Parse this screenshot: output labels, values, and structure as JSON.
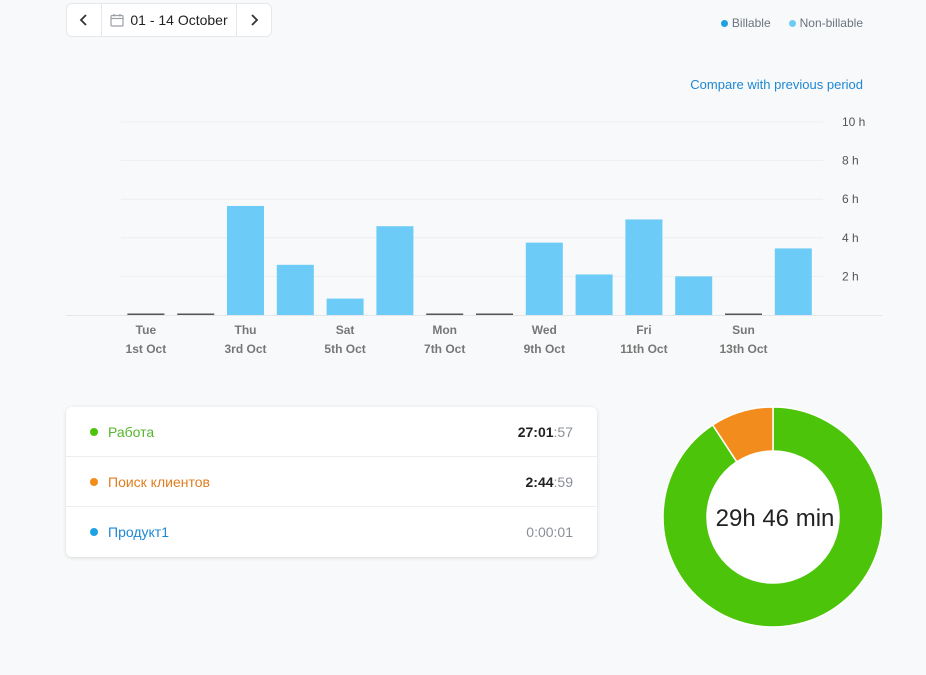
{
  "date_picker": {
    "prev_icon": "chevron-left-icon",
    "calendar_icon": "calendar-icon",
    "range_label": "01 - 14 October",
    "next_icon": "chevron-right-icon"
  },
  "legend": {
    "billable": {
      "label": "Billable",
      "color": "#1da1e0"
    },
    "non_billable": {
      "label": "Non-billable",
      "color": "#6ccbf7"
    }
  },
  "compare_link": "Compare with previous period",
  "chart_data": {
    "type": "bar",
    "categories": [
      "1st Oct",
      "2nd Oct",
      "3rd Oct",
      "4th Oct",
      "5th Oct",
      "6th Oct",
      "7th Oct",
      "8th Oct",
      "9th Oct",
      "10th Oct",
      "11th Oct",
      "12th Oct",
      "13th Oct",
      "14th Oct"
    ],
    "x_tick_labels": [
      {
        "index": 0,
        "day": "Tue",
        "date": "1st Oct"
      },
      {
        "index": 2,
        "day": "Thu",
        "date": "3rd Oct"
      },
      {
        "index": 4,
        "day": "Sat",
        "date": "5th Oct"
      },
      {
        "index": 6,
        "day": "Mon",
        "date": "7th Oct"
      },
      {
        "index": 8,
        "day": "Wed",
        "date": "9th Oct"
      },
      {
        "index": 10,
        "day": "Fri",
        "date": "11th Oct"
      },
      {
        "index": 12,
        "day": "Sun",
        "date": "13th Oct"
      }
    ],
    "series": [
      {
        "name": "Non-billable",
        "color": "#6ccbf7",
        "values": [
          0,
          0,
          5.65,
          2.6,
          0.85,
          4.6,
          0,
          0,
          3.75,
          2.1,
          4.95,
          2.0,
          0,
          3.45
        ]
      }
    ],
    "y_ticks": [
      "2 h",
      "4 h",
      "6 h",
      "8 h",
      "10 h"
    ],
    "ylim": [
      0,
      10
    ],
    "grid": true,
    "axis_side": "right",
    "legend_position": "top-right"
  },
  "projects": [
    {
      "name": "Работа",
      "color": "#55b52c",
      "dot": "#4cc40a",
      "time_main": "27:01",
      "time_sec": ":57",
      "muted": false
    },
    {
      "name": "Поиск клиентов",
      "color": "#e07d20",
      "dot": "#f28c1c",
      "time_main": "2:44",
      "time_sec": ":59",
      "muted": false
    },
    {
      "name": "Продукт1",
      "color": "#1e88d4",
      "dot": "#1da1e0",
      "time_main": "",
      "time_sec": "0:00:01",
      "muted": true
    }
  ],
  "donut": {
    "total_label": "29h 46 min",
    "segments": [
      {
        "name": "Работа",
        "value": 27.03,
        "color": "#4cc40a"
      },
      {
        "name": "Поиск клиентов",
        "value": 2.75,
        "color": "#f28c1c"
      },
      {
        "name": "Продукт1",
        "value": 0.0003,
        "color": "#1da1e0"
      }
    ]
  }
}
